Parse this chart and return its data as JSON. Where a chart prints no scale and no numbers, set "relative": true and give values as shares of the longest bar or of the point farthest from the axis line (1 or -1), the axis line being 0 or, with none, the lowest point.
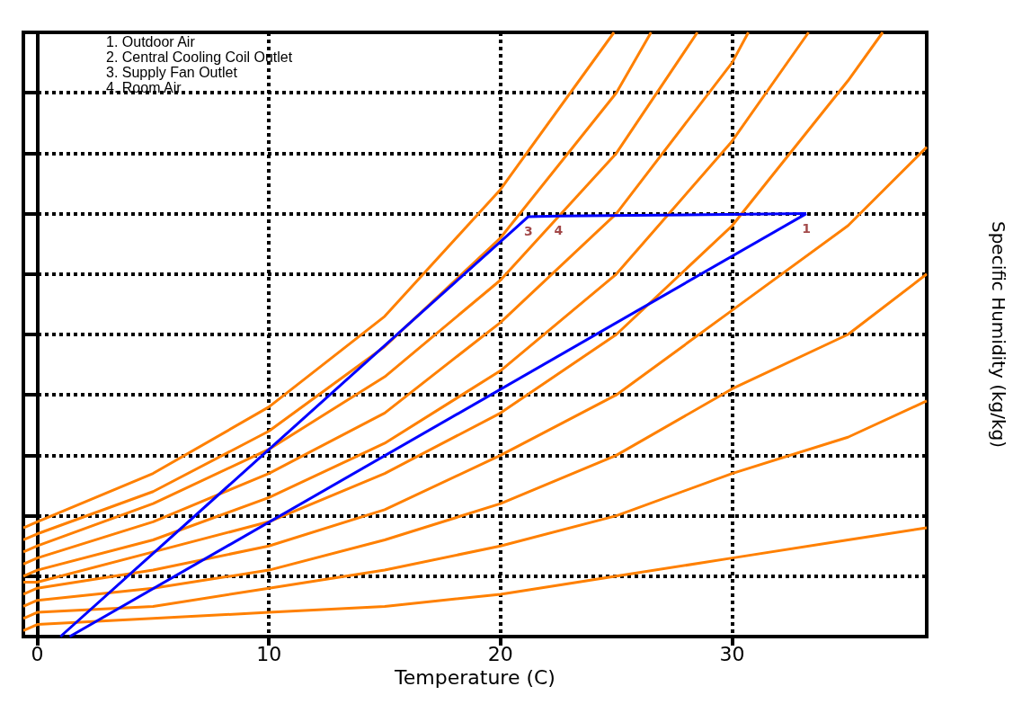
{
  "chart_data": {
    "type": "line",
    "relative": true,
    "xlabel": "Temperature (C)",
    "ylabel": "Specific Humidity (kg/kg)",
    "xlim": [
      -0.6,
      38.4
    ],
    "xticks": [
      0,
      10,
      20,
      30
    ],
    "grid": true,
    "marker": "none",
    "line_style": "solid",
    "annotations": [
      "1. Outdoor Air",
      "2. Central Cooling Coil Outlet",
      "3. Supply Fan Outlet",
      "4. Room Air",
      {
        "text": "1",
        "x": 33.2,
        "y": 0.7
      },
      {
        "text": "3",
        "x": 21.2,
        "y": 0.695
      },
      {
        "text": "4",
        "x": 22.5,
        "y": 0.696
      }
    ],
    "series": [
      {
        "color": "#ff8000",
        "x": [
          -0.6,
          0,
          5,
          10,
          15,
          20,
          24.9
        ],
        "values": [
          0.18,
          0.19,
          0.27,
          0.38,
          0.53,
          0.74,
          1
        ]
      },
      {
        "color": "#ff8000",
        "x": [
          -0.6,
          0,
          5,
          10,
          15,
          20,
          25,
          26.5
        ],
        "values": [
          0.16,
          0.17,
          0.24,
          0.34,
          0.48,
          0.66,
          0.9,
          1
        ]
      },
      {
        "color": "#ff8000",
        "x": [
          -0.6,
          0,
          5,
          10,
          15,
          20,
          25,
          28.5
        ],
        "values": [
          0.14,
          0.15,
          0.22,
          0.31,
          0.43,
          0.59,
          0.8,
          1
        ]
      },
      {
        "color": "#ff8000",
        "x": [
          -0.6,
          0,
          5,
          10,
          15,
          20,
          25,
          30,
          30.7
        ],
        "values": [
          0.12,
          0.13,
          0.19,
          0.27,
          0.37,
          0.52,
          0.7,
          0.95,
          1
        ]
      },
      {
        "color": "#ff8000",
        "x": [
          -0.6,
          0,
          5,
          10,
          15,
          20,
          25,
          30,
          33.3
        ],
        "values": [
          0.1,
          0.11,
          0.16,
          0.23,
          0.32,
          0.44,
          0.6,
          0.82,
          1
        ]
      },
      {
        "color": "#ff8000",
        "x": [
          -0.6,
          0,
          5,
          10,
          15,
          20,
          25,
          30,
          35,
          36.5
        ],
        "values": [
          0.09,
          0.09,
          0.14,
          0.19,
          0.27,
          0.37,
          0.5,
          0.68,
          0.92,
          1
        ]
      },
      {
        "color": "#ff8000",
        "x": [
          -0.6,
          0,
          5,
          10,
          15,
          20,
          25,
          30,
          35,
          38.4
        ],
        "values": [
          0.07,
          0.08,
          0.11,
          0.15,
          0.21,
          0.3,
          0.4,
          0.54,
          0.68,
          0.81
        ]
      },
      {
        "color": "#ff8000",
        "x": [
          -0.6,
          0,
          5,
          10,
          15,
          20,
          25,
          30,
          35,
          38.4
        ],
        "values": [
          0.05,
          0.06,
          0.08,
          0.11,
          0.16,
          0.22,
          0.3,
          0.41,
          0.5,
          0.6
        ]
      },
      {
        "color": "#ff8000",
        "x": [
          -0.6,
          0,
          5,
          10,
          15,
          20,
          25,
          30,
          35,
          38.4
        ],
        "values": [
          0.03,
          0.04,
          0.05,
          0.08,
          0.11,
          0.15,
          0.2,
          0.27,
          0.33,
          0.39
        ]
      },
      {
        "color": "#ff8000",
        "x": [
          -0.6,
          0,
          5,
          10,
          15,
          20,
          25,
          30,
          35,
          38.4
        ],
        "values": [
          0.01,
          0.02,
          0.03,
          0.04,
          0.05,
          0.07,
          0.1,
          0.13,
          0.16,
          0.18
        ]
      },
      {
        "color": "#0000ff",
        "x": [
          1.4,
          33.2
        ],
        "values": [
          0,
          0.7
        ]
      },
      {
        "color": "#0000ff",
        "x": [
          1.0,
          21.2,
          22.5,
          33.2
        ],
        "values": [
          0,
          0.695,
          0.696,
          0.7
        ]
      }
    ]
  }
}
